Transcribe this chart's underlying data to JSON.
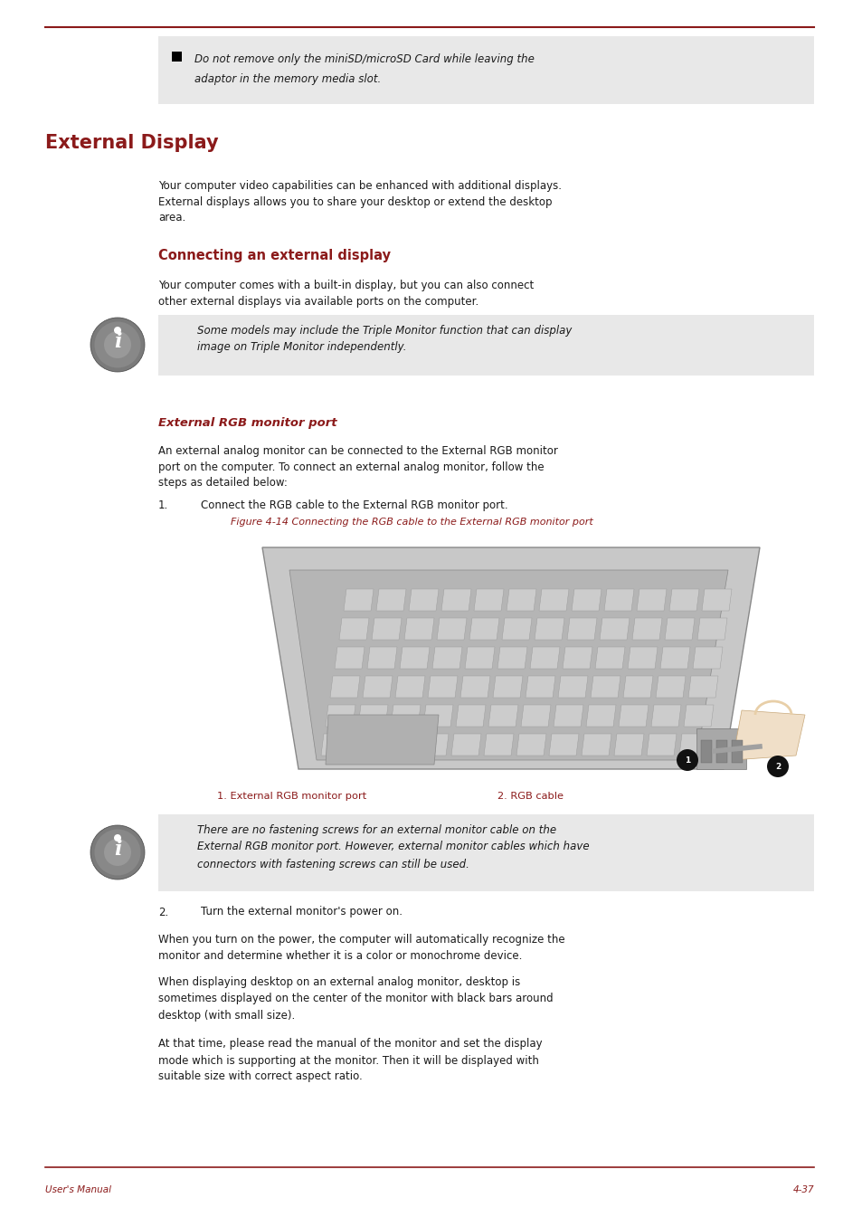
{
  "bg_color": "#ffffff",
  "red": "#8b1a1a",
  "black": "#1a1a1a",
  "gray_box": "#e8e8e8",
  "page_width": 9.54,
  "page_height": 13.45,
  "footer_left": "User's Manual",
  "footer_right": "4-37",
  "title_main": "External Display",
  "subtitle": "Connecting an external display",
  "bullet_line1": "Do not remove only the miniSD/microSD Card while leaving the",
  "bullet_line2": "adaptor in the memory media slot.",
  "para1_line1": "Your computer video capabilities can be enhanced with additional displays.",
  "para1_line2": "External displays allows you to share your desktop or extend the desktop",
  "para1_line3": "area.",
  "sub_para1_line1": "Your computer comes with a built-in display, but you can also connect",
  "sub_para1_line2": "other external displays via available ports on the computer.",
  "info_box1_line1": "Some models may include the Triple Monitor function that can display",
  "info_box1_line2": "image on Triple Monitor independently.",
  "rgb_title": "External RGB monitor port",
  "rgb_para1": "An external analog monitor can be connected to the External RGB monitor",
  "rgb_para2": "port on the computer. To connect an external analog monitor, follow the",
  "rgb_para3": "steps as detailed below:",
  "step1_num": "1.",
  "step1_text": "Connect the RGB cable to the External RGB monitor port.",
  "figure_caption": "Figure 4-14 Connecting the RGB cable to the External RGB monitor port",
  "label1": "1. External RGB monitor port",
  "label2": "2. RGB cable",
  "info_box2_line1": "There are no fastening screws for an external monitor cable on the",
  "info_box2_line2": "External RGB monitor port. However, external monitor cables which have",
  "info_box2_line3": "connectors with fastening screws can still be used.",
  "step2_num": "2.",
  "step2_text": "Turn the external monitor's power on.",
  "when1_line1": "When you turn on the power, the computer will automatically recognize the",
  "when1_line2": "monitor and determine whether it is a color or monochrome device.",
  "when2_line1": "When displaying desktop on an external analog monitor, desktop is",
  "when2_line2": "sometimes displayed on the center of the monitor with black bars around",
  "when2_line3": "desktop (with small size).",
  "at_line1": "At that time, please read the manual of the monitor and set the display",
  "at_line2": "mode which is supporting at the monitor. Then it will be displayed with",
  "at_line3": "suitable size with correct aspect ratio."
}
